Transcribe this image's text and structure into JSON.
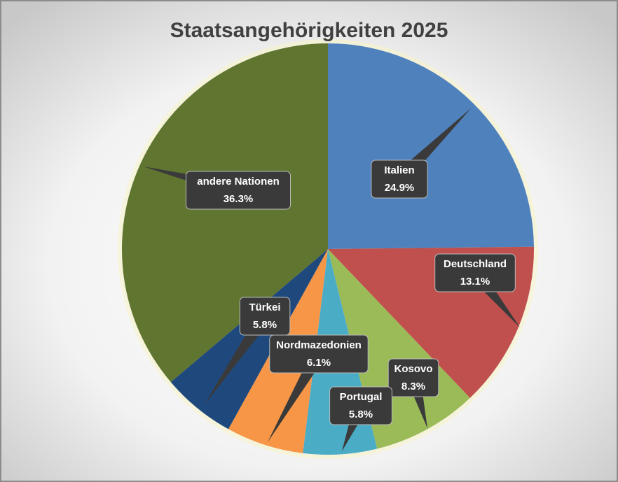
{
  "chart_data": {
    "type": "pie",
    "title": "Staatsangehörigkeiten 2025",
    "categories": [
      "Italien",
      "Deutschland",
      "Kosovo",
      "Portugal",
      "Nordmazedonien",
      "Türkei",
      "andere Nationen"
    ],
    "values": [
      24.9,
      13.1,
      8.3,
      5.8,
      6.1,
      5.8,
      36.3
    ],
    "value_labels": [
      "24.9%",
      "13.1%",
      "8.3%",
      "5.8%",
      "6.1%",
      "5.8%",
      "36.3%"
    ],
    "colors": [
      "#4f81bd",
      "#c0504d",
      "#9bbb59",
      "#4bacc6",
      "#f79646",
      "#1f497d",
      "#5f7530"
    ]
  }
}
